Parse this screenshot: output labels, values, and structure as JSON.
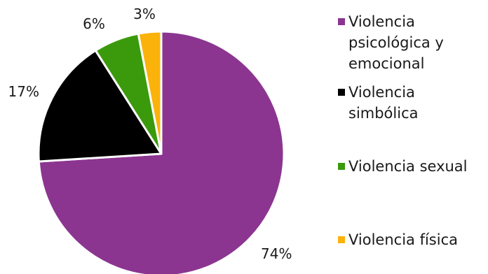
{
  "chart_data": {
    "type": "pie",
    "categories": [
      "Violencia psicológica y emocional",
      "Violencia simbólica",
      "Violencia sexual",
      "Violencia física"
    ],
    "values": [
      74,
      17,
      6,
      3
    ],
    "labels": [
      "74%",
      "17%",
      "6%",
      "3%"
    ],
    "colors": [
      "#8b3590",
      "#000000",
      "#3b9a0c",
      "#fbb20a"
    ],
    "legend": {
      "placement": "right",
      "entries": [
        {
          "lines": [
            "Violencia",
            "psicológica y",
            "emocional"
          ],
          "color": "#8b3590"
        },
        {
          "lines": [
            "Violencia",
            "simbólica"
          ],
          "color": "#000000"
        },
        {
          "lines": [
            "Violencia sexual"
          ],
          "color": "#3b9a0c"
        },
        {
          "lines": [
            "Violencia física"
          ],
          "color": "#fbb20a"
        }
      ]
    },
    "start_angle_deg": 0,
    "direction": "clockwise"
  }
}
